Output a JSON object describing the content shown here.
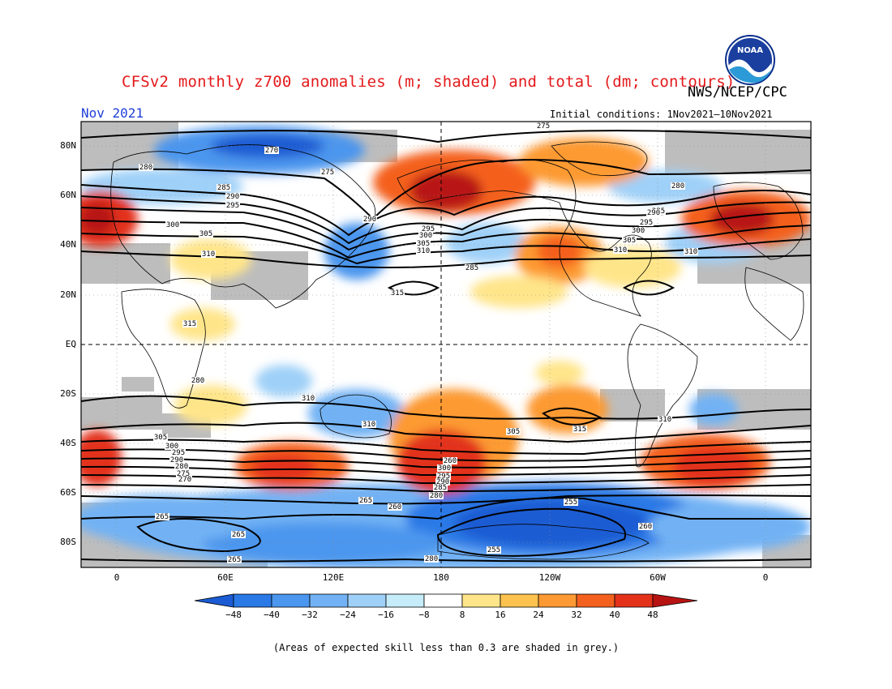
{
  "header": {
    "title": "CFSv2 monthly z700 anomalies (m; shaded) and total (dm; contours)",
    "agency": "NWS/NCEP/CPC",
    "month": "Nov 2021",
    "initial_conditions": "Initial conditions: 1Nov2021–10Nov2021",
    "logo_text": "NOAA"
  },
  "map": {
    "lat_labels": [
      "80N",
      "60N",
      "40N",
      "20N",
      "EQ",
      "20S",
      "40S",
      "60S",
      "80S"
    ],
    "lon_labels": [
      "0",
      "60E",
      "120E",
      "180",
      "120W",
      "60W",
      "0"
    ],
    "contour_labels": [
      "275",
      "270",
      "275",
      "280",
      "280",
      "285",
      "285",
      "290",
      "295",
      "300",
      "305",
      "310",
      "310",
      "315",
      "315",
      "280",
      "290",
      "295",
      "300",
      "305",
      "310",
      "285",
      "290",
      "295",
      "300",
      "305",
      "310",
      "310",
      "305",
      "310",
      "315",
      "310",
      "305",
      "300",
      "295",
      "290",
      "280",
      "275",
      "270",
      "265",
      "260",
      "265",
      "265",
      "255",
      "260",
      "255",
      "280",
      "265",
      "260",
      "300",
      "295",
      "290",
      "285",
      "280",
      "275",
      "270"
    ]
  },
  "colorbar": {
    "ticks": [
      "−48",
      "−40",
      "−32",
      "−24",
      "−16",
      "−8",
      "8",
      "16",
      "24",
      "32",
      "40",
      "48"
    ],
    "colors": [
      "#1b5bd3",
      "#2a79e6",
      "#4b96ee",
      "#72b2f4",
      "#9fd0f8",
      "#c5ecf8",
      "#ffffff",
      "#ffe58a",
      "#fec34e",
      "#fd9a33",
      "#f4601d",
      "#e3311a",
      "#b81313"
    ]
  },
  "footnote": "(Areas of expected skill less than 0.3 are shaded in grey.)",
  "colors": {
    "title": "#e41a1c",
    "month": "#1f3fd8",
    "skill_grey": "#bdbdbd"
  }
}
